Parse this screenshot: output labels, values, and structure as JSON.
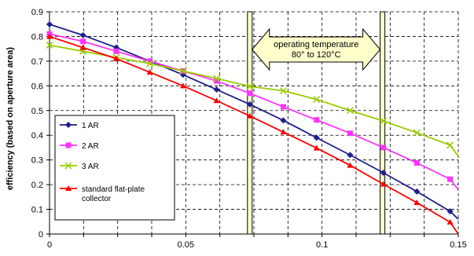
{
  "chart_data": {
    "type": "line",
    "xlabel": "",
    "ylabel": "efficiency (based on aperture area)",
    "xlim": [
      0,
      0.15
    ],
    "ylim": [
      0,
      0.9
    ],
    "xticks": [
      0,
      0.05,
      0.1,
      0.15
    ],
    "xtick_labels": [
      "0",
      "0.05",
      "0.1",
      "0.15"
    ],
    "yticks": [
      0,
      0.1,
      0.2,
      0.3,
      0.4,
      0.5,
      0.6,
      0.7,
      0.8,
      0.9
    ],
    "ytick_labels": [
      "0",
      "0.1",
      "0.2",
      "0.3",
      "0.4",
      "0.5",
      "0.6",
      "0.7",
      "0.8",
      "0.9"
    ],
    "grid": "dashed",
    "legend_position": "left",
    "annotation": {
      "line1": "operating temperature",
      "line2": "80° to 120°C",
      "band_lines_x": [
        0.0735,
        0.1222
      ]
    },
    "series": [
      {
        "name": "1 AR",
        "color": "#1f1f8c",
        "marker": "diamond",
        "x": [
          0,
          0.0123,
          0.0245,
          0.0368,
          0.049,
          0.0613,
          0.0735,
          0.0858,
          0.098,
          0.1103,
          0.1225,
          0.1348,
          0.147,
          0.1563
        ],
        "y": [
          0.849,
          0.805,
          0.755,
          0.7,
          0.645,
          0.585,
          0.525,
          0.46,
          0.39,
          0.32,
          0.248,
          0.172,
          0.092,
          0.06
        ]
      },
      {
        "name": "2 AR",
        "color": "#ff33ff",
        "marker": "square",
        "x": [
          0,
          0.0123,
          0.0245,
          0.0368,
          0.049,
          0.0613,
          0.0735,
          0.0858,
          0.098,
          0.1103,
          0.1225,
          0.1348,
          0.147,
          0.1563
        ],
        "y": [
          0.81,
          0.78,
          0.74,
          0.7,
          0.66,
          0.62,
          0.57,
          0.515,
          0.462,
          0.408,
          0.35,
          0.288,
          0.222,
          0.18
        ]
      },
      {
        "name": "3 AR",
        "color": "#99cc00",
        "marker": "x",
        "x": [
          0,
          0.0123,
          0.0245,
          0.0368,
          0.049,
          0.0613,
          0.0735,
          0.0858,
          0.098,
          0.1103,
          0.1225,
          0.1348,
          0.147,
          0.1563
        ],
        "y": [
          0.765,
          0.74,
          0.715,
          0.69,
          0.66,
          0.63,
          0.598,
          0.58,
          0.545,
          0.5,
          0.458,
          0.41,
          0.36,
          0.315
        ]
      },
      {
        "name": "standard flat-plate collector",
        "color": "#ff0000",
        "marker": "triangle",
        "x": [
          0,
          0.0123,
          0.0245,
          0.0368,
          0.049,
          0.0613,
          0.0735,
          0.0858,
          0.098,
          0.1103,
          0.1225,
          0.1348,
          0.147,
          0.1563
        ],
        "y": [
          0.8,
          0.755,
          0.71,
          0.655,
          0.6,
          0.54,
          0.478,
          0.413,
          0.348,
          0.278,
          0.202,
          0.127,
          0.048,
          0.0
        ]
      }
    ]
  }
}
